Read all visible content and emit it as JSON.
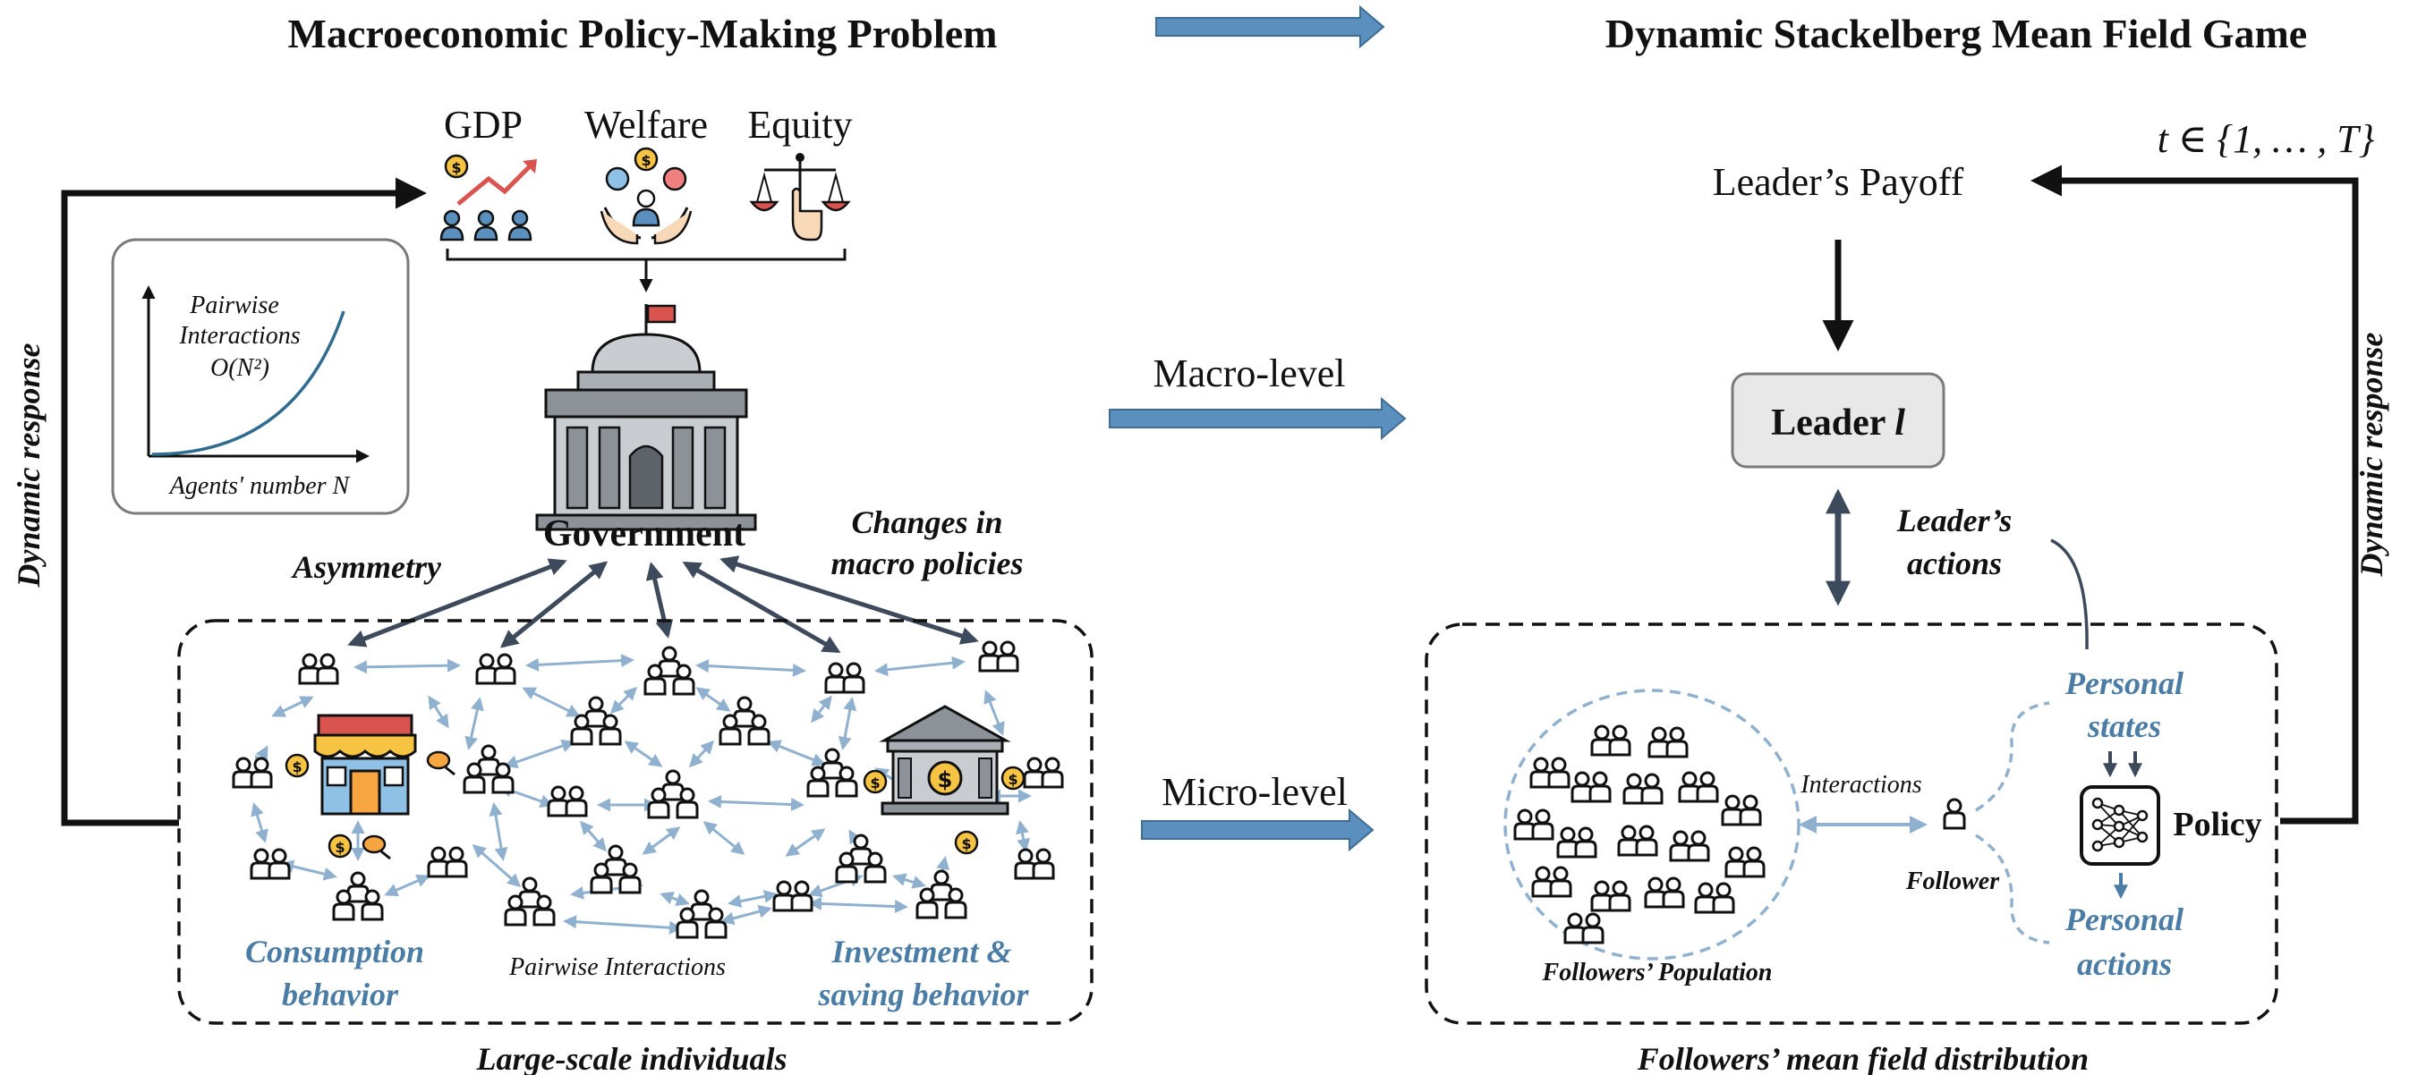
{
  "titles": {
    "left": "Macroeconomic Policy-Making Problem",
    "right": "Dynamic Stackelberg Mean Field Game"
  },
  "goals": {
    "gdp": "GDP",
    "welfare": "Welfare",
    "equity": "Equity"
  },
  "inset": {
    "line1": "Pairwise",
    "line2": "Interactions",
    "line3": "O(N²)",
    "xlabel": "Agents' number N"
  },
  "left": {
    "dynamic_response": "Dynamic response",
    "government": "Government",
    "asymmetry": "Asymmetry",
    "changes_line1": "Changes in",
    "changes_line2": "macro policies",
    "consumption_line1": "Consumption",
    "consumption_line2": "behavior",
    "pairwise": "Pairwise Interactions",
    "investment_line1": "Investment &",
    "investment_line2": "saving behavior",
    "large_scale": "Large-scale individuals"
  },
  "middle": {
    "macro": "Macro-level",
    "micro": "Micro-level"
  },
  "right": {
    "time_set": "t ∈ {1, … , T}",
    "leader_payoff": "Leader’s Payoff",
    "leader": "Leader",
    "leader_symbol": "l",
    "leaders_actions_line1": "Leader’s",
    "leaders_actions_line2": "actions",
    "dynamic_response": "Dynamic response",
    "personal_states_line1": "Personal",
    "personal_states_line2": "states",
    "policy": "Policy",
    "personal_actions_line1": "Personal",
    "personal_actions_line2": "actions",
    "interactions": "Interactions",
    "follower": "Follower",
    "followers_population": "Followers’ Population",
    "mean_field": "Followers’ mean field distribution"
  },
  "colors": {
    "accent_blue": "#4a7ca5",
    "arrow_fill": "#5b8fbd",
    "dark_arrow": "#3d4a5c",
    "light_arrow": "#8fb1cf"
  },
  "icons": [
    "coin-icon",
    "growth-chart-icon",
    "people-icon",
    "welfare-hands-icon",
    "scales-icon",
    "government-building-icon",
    "shop-icon",
    "bank-icon",
    "person-group-icon",
    "neural-network-icon"
  ]
}
